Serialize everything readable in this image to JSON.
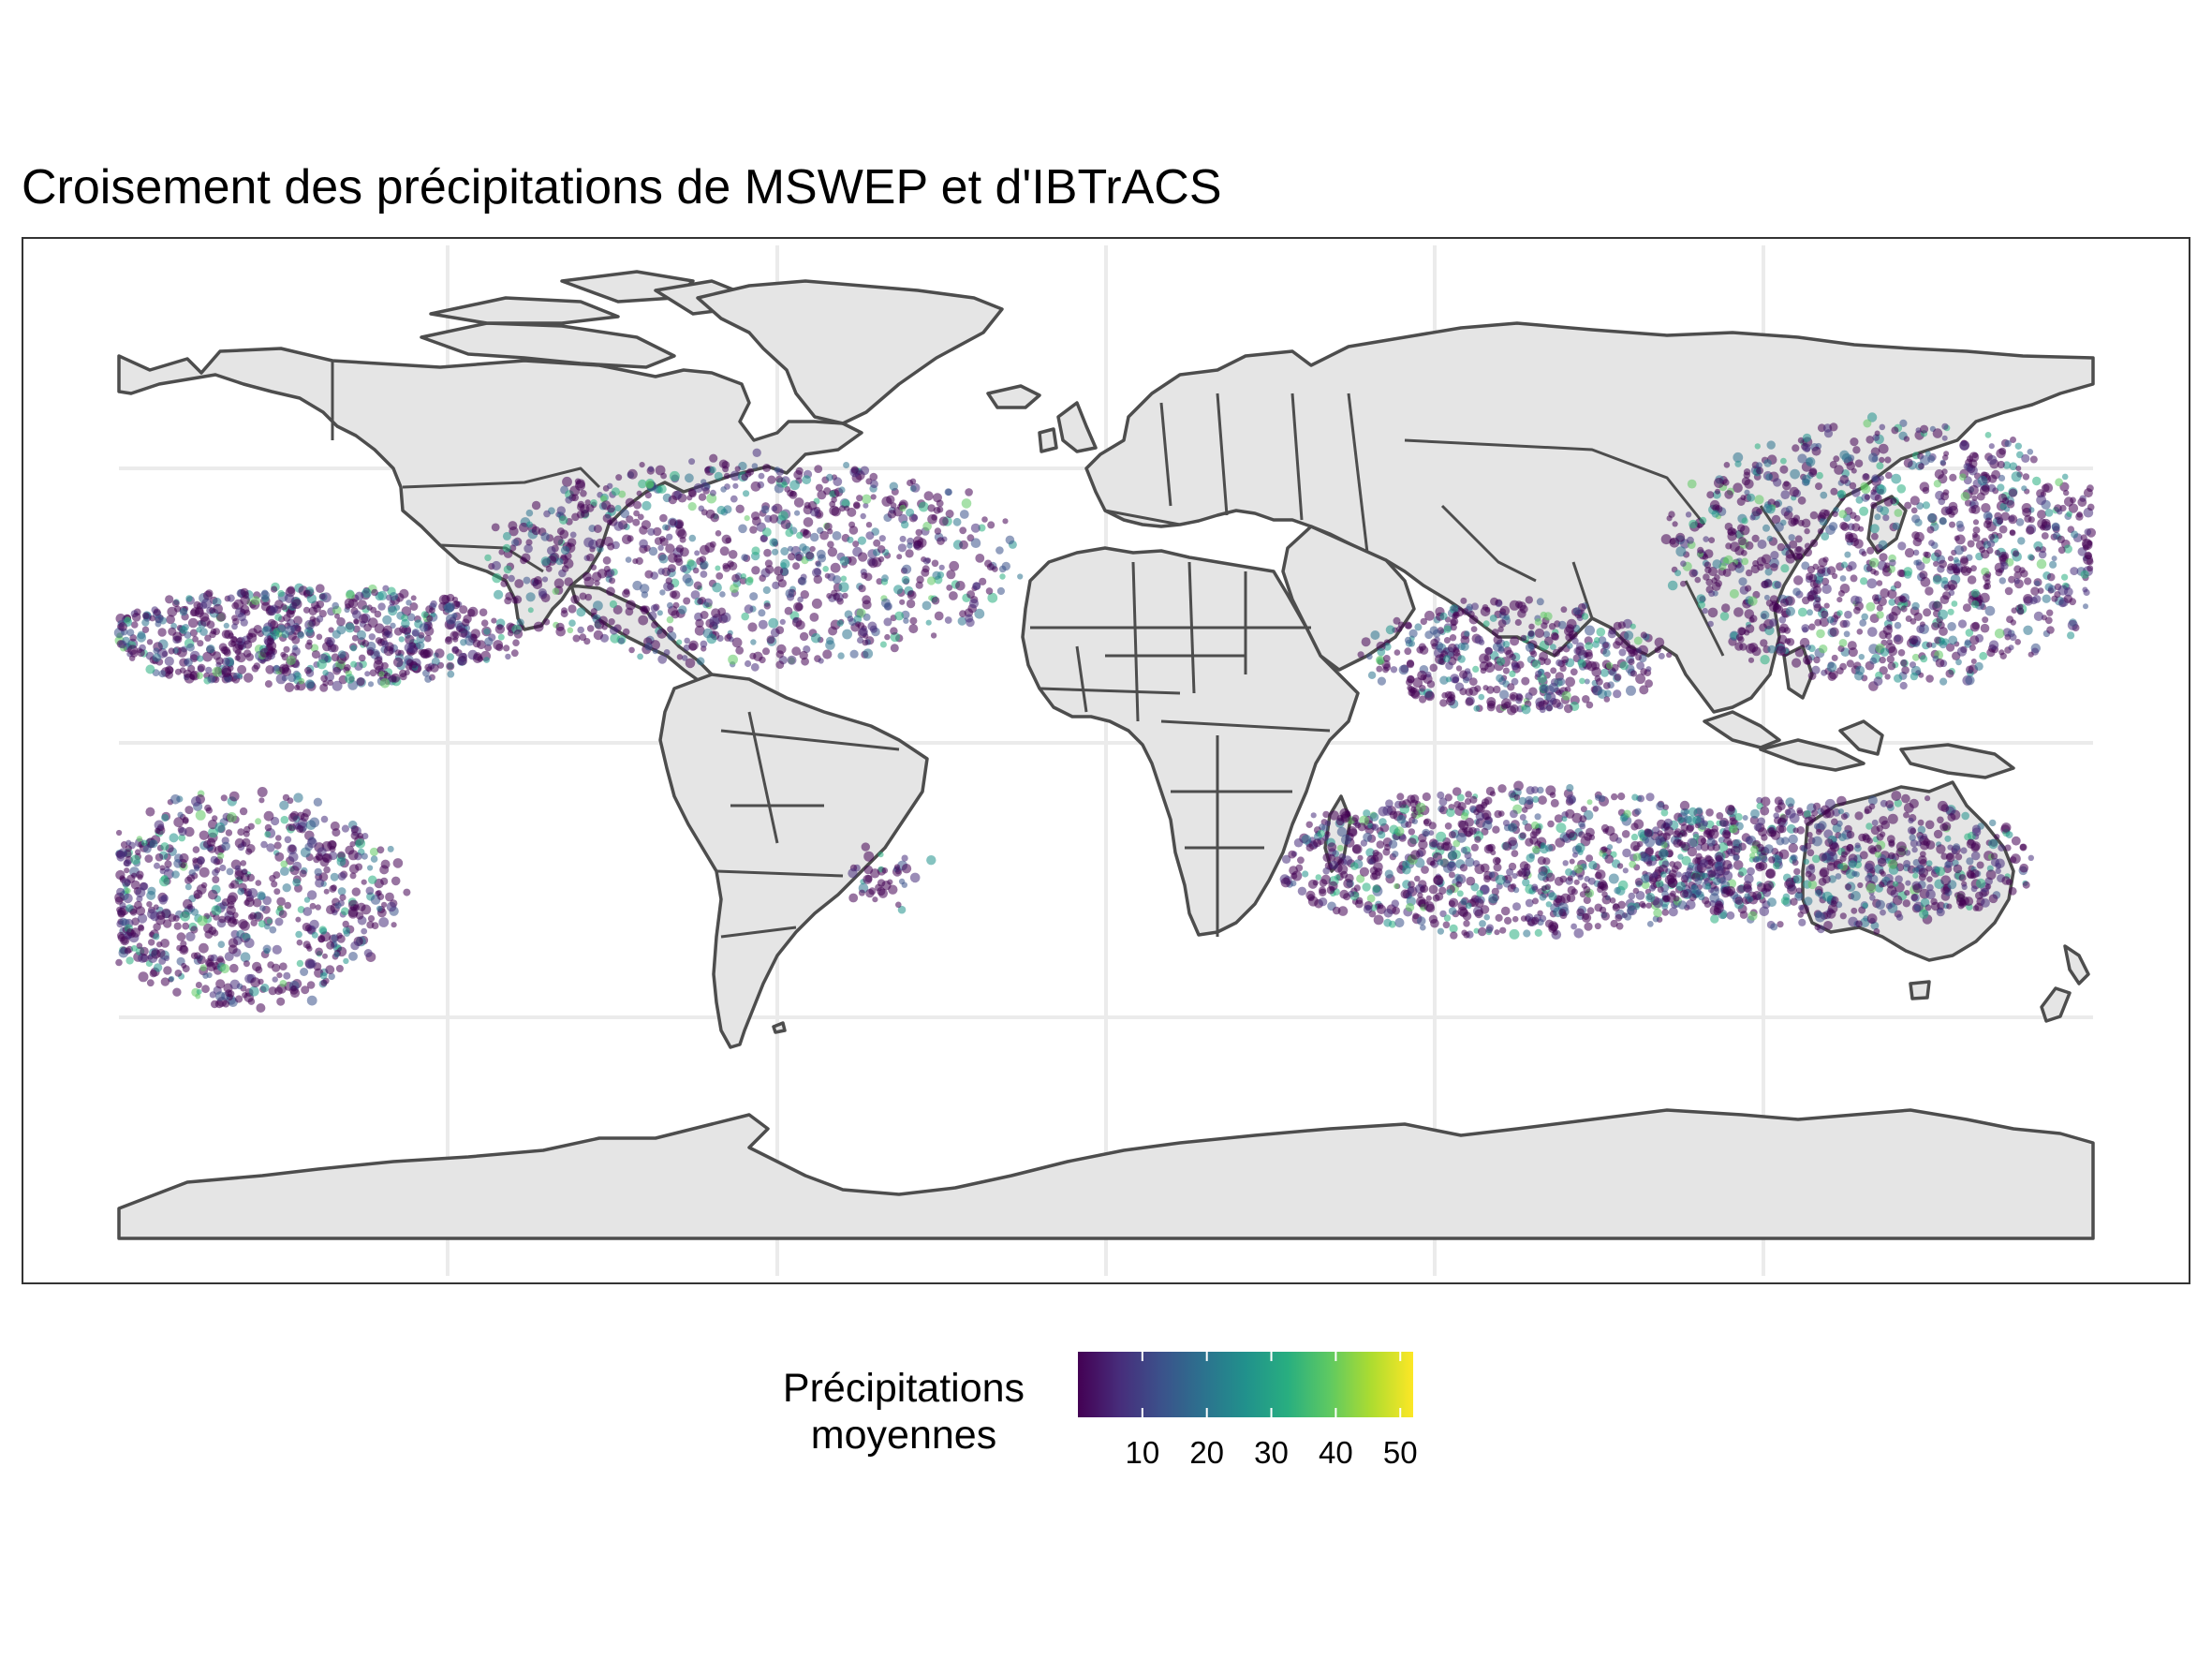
{
  "title": "Croisement des précipitations de MSWEP et d'IBTrACS",
  "map": {
    "projection": "equirectangular",
    "land_color": "#e5e5e5",
    "border_color": "#4d4d4d",
    "background": "#ffffff",
    "graticule": "light grey grid",
    "point_layer": "tropical cyclone tracks (IBTrACS) colored by mean MSWEP precipitation",
    "track_regions": [
      "North Atlantic",
      "Eastern North Pacific",
      "Western North Pacific",
      "North Indian Ocean",
      "South Indian Ocean",
      "Australian region",
      "South Pacific",
      "South Atlantic"
    ]
  },
  "legend": {
    "title_line1": "Précipitations",
    "title_line2": "moyennes",
    "palette": "viridis",
    "color_stops": [
      "#440154",
      "#472d7b",
      "#3b528b",
      "#2c728e",
      "#21918c",
      "#28ae80",
      "#5ec962",
      "#addc30",
      "#fde725"
    ],
    "range": [
      0,
      52
    ],
    "ticks": [
      {
        "value": 10,
        "label": "10"
      },
      {
        "value": 20,
        "label": "20"
      },
      {
        "value": 30,
        "label": "30"
      },
      {
        "value": 40,
        "label": "40"
      },
      {
        "value": 50,
        "label": "50"
      }
    ]
  }
}
